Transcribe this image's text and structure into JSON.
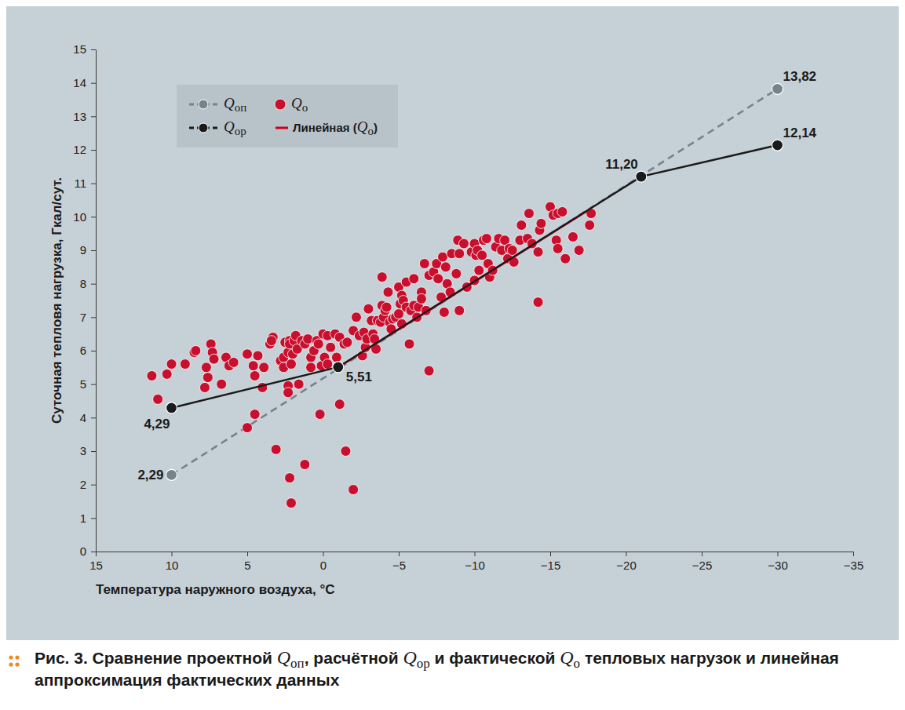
{
  "chart_data": {
    "type": "scatter",
    "title": "Рис. 3. Сравнение проектной Qоп, расчётной Qор и фактической Qо тепловых нагрузок и линейная аппроксимация фактических данных",
    "x_label": "Температура наружного воздуха, °C",
    "y_label": "Суточная тепловя нагрузка, Гкал/сут.",
    "xlim": [
      15,
      -35
    ],
    "xticks": [
      15,
      10,
      5,
      0,
      {
        "value": -5,
        "label": "−5"
      },
      {
        "value": -10,
        "label": "−10"
      },
      {
        "value": -15,
        "label": "−15"
      },
      {
        "value": -20,
        "label": "−20"
      },
      {
        "value": -25,
        "label": "−25"
      },
      {
        "value": -30,
        "label": "−30"
      },
      {
        "value": -35,
        "label": "−35"
      }
    ],
    "ylim": [
      0,
      15
    ],
    "yticks": [
      0,
      1,
      2,
      3,
      4,
      5,
      6,
      7,
      8,
      9,
      10,
      11,
      12,
      13,
      14,
      15
    ],
    "grid": false,
    "legend": "top-left",
    "data_labels": true,
    "series": [
      {
        "name": "Qоп",
        "type": "line",
        "color": "#75838d",
        "line_style": "dashed",
        "marker": "circle",
        "x": [
          10,
          -30
        ],
        "values": [
          2.29,
          13.82
        ],
        "value_labels": [
          "2,29",
          "13,82"
        ]
      },
      {
        "name": "Qор",
        "type": "line",
        "color": "#1a1a1a",
        "line_style": "solid",
        "marker": "circle",
        "x": [
          10,
          -1,
          -21,
          -30
        ],
        "values": [
          4.29,
          5.51,
          11.2,
          12.14
        ],
        "value_labels": [
          "4,29",
          "5,51",
          "11,20",
          "12,14"
        ]
      },
      {
        "name": "Qо",
        "type": "scatter",
        "color": "#c8102e",
        "marker": "circle",
        "x": [
          11.3,
          10.9,
          10.3,
          10,
          9.1,
          8.5,
          8.4,
          7.8,
          7.7,
          7.6,
          7.4,
          7.3,
          7.2,
          6.7,
          6.4,
          6.2,
          5.9,
          5,
          5,
          4.6,
          4.5,
          4.5,
          4.3,
          4,
          3.9,
          3.5,
          3.3,
          3.4,
          3.1,
          2.8,
          2.6,
          2.6,
          2.5,
          2.3,
          2.2,
          2.2,
          2.1,
          2,
          1.9,
          1.8,
          1.7,
          1.6,
          1.4,
          1.2,
          2.3,
          2.3,
          2.2,
          2.1,
          1.2,
          1,
          0.8,
          0.8,
          0.6,
          0.4,
          0.3,
          0.2,
          0,
          0.1,
          -0.1,
          -0.3,
          -0.5,
          -0.3,
          -0.8,
          -0.9,
          -1.1,
          -1.1,
          -1.5,
          -1.4,
          -1.6,
          -2,
          -2,
          -2.2,
          -2.4,
          -2.6,
          -2.7,
          -2.8,
          -2.9,
          -3,
          -3.2,
          -3.3,
          -3.4,
          -3.5,
          -3.6,
          -3.8,
          -3.9,
          -3.9,
          -4,
          -4.1,
          -4.2,
          -4.3,
          -4.4,
          -4.5,
          -4.6,
          -4.8,
          -5,
          -5,
          -5.1,
          -5.2,
          -5.2,
          -5.3,
          -5.5,
          -5.5,
          -5.7,
          -5.8,
          -6,
          -6,
          -6.2,
          -6.3,
          -6.5,
          -6.5,
          -6.7,
          -6.8,
          -7,
          -7,
          -7.3,
          -7.5,
          -7.6,
          -7.8,
          -7.9,
          -8,
          -8.1,
          -8.2,
          -8.4,
          -8.5,
          -8.8,
          -8.9,
          -9,
          -9,
          -9.3,
          -9.5,
          -9.8,
          -10,
          -10,
          -10.1,
          -10.2,
          -10.3,
          -10.5,
          -10.6,
          -10.8,
          -10.9,
          -11,
          -11.2,
          -11.4,
          -11.6,
          -11.8,
          -12,
          -12.2,
          -12.3,
          -12.5,
          -12.6,
          -13,
          -13.1,
          -13.5,
          -13.6,
          -13.8,
          -14.2,
          -14.2,
          -14.3,
          -14.4,
          -15,
          -15.2,
          -15.5,
          -15.4,
          -15.5,
          -15.8,
          -16,
          -16.5,
          -16.9,
          -17.6,
          -17.7
        ],
        "values": [
          5.25,
          4.55,
          5.3,
          5.6,
          5.6,
          5.95,
          6.0,
          4.9,
          5.5,
          5.2,
          6.2,
          5.95,
          5.75,
          5.0,
          5.8,
          5.55,
          5.65,
          5.9,
          3.7,
          5.55,
          5.25,
          4.1,
          5.85,
          4.9,
          5.5,
          6.2,
          6.4,
          6.3,
          3.05,
          5.7,
          5.8,
          5.5,
          6.25,
          5.95,
          6.3,
          6.2,
          5.6,
          5.9,
          6.3,
          6.45,
          6.05,
          5.0,
          6.3,
          6.2,
          4.95,
          4.75,
          2.2,
          1.45,
          2.6,
          6.35,
          5.8,
          5.5,
          6.0,
          6.3,
          6.2,
          4.1,
          6.5,
          5.55,
          5.8,
          6.45,
          6.1,
          5.6,
          6.5,
          5.8,
          6.4,
          4.4,
          3.0,
          6.2,
          6.25,
          1.85,
          6.6,
          7.0,
          6.45,
          5.85,
          6.55,
          6.1,
          6.35,
          7.25,
          6.9,
          6.5,
          6.35,
          6.05,
          6.9,
          6.85,
          8.2,
          7.35,
          7.0,
          7.2,
          7.3,
          7.75,
          6.85,
          6.65,
          6.95,
          7.0,
          7.9,
          7.1,
          7.4,
          7.65,
          6.8,
          7.5,
          8.05,
          7.3,
          6.2,
          7.2,
          8.15,
          7.35,
          7.0,
          7.3,
          7.75,
          7.55,
          8.6,
          7.2,
          8.25,
          5.4,
          8.35,
          8.6,
          8.15,
          7.6,
          8.8,
          7.15,
          8.5,
          8.0,
          7.75,
          8.9,
          8.3,
          9.3,
          8.9,
          7.2,
          9.2,
          7.9,
          8.95,
          9.2,
          8.1,
          8.85,
          9.0,
          8.4,
          8.85,
          9.3,
          9.35,
          8.6,
          8.2,
          8.4,
          9.1,
          9.35,
          9.0,
          9.3,
          8.75,
          9.05,
          9.0,
          8.65,
          9.3,
          9.75,
          9.35,
          10.1,
          9.2,
          7.45,
          8.95,
          9.6,
          9.8,
          10.3,
          10.05,
          10.1,
          9.3,
          9.05,
          10.15,
          8.75,
          9.4,
          9.0,
          9.75,
          10.1
        ]
      },
      {
        "name": "Линейная (Qо)",
        "type": "line",
        "color": "#d0021b",
        "line_style": "solid",
        "marker": "none",
        "x": [
          -1,
          -17.7
        ],
        "values": [
          5.5,
          10.25
        ]
      }
    ]
  }
}
